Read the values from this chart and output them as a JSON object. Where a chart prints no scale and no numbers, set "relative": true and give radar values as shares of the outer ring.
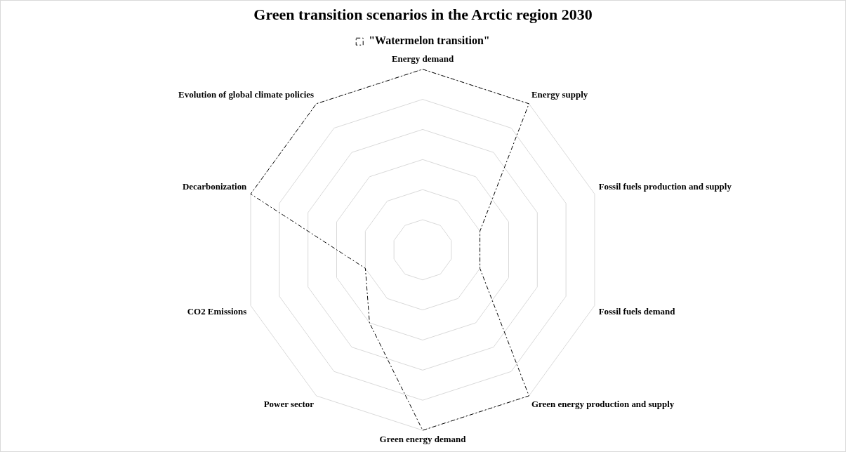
{
  "chart_data": {
    "type": "radar",
    "title": "Green transition scenarios in the Arctic region 2030",
    "categories": [
      "Energy demand",
      "Energy supply",
      "Fossil fuels production and supply",
      "Fossil fuels demand",
      "Green energy production and supply",
      "Green energy demand",
      "Power sector",
      "CO2 Emissions",
      "Decarbonization",
      "Evolution of global climate policies"
    ],
    "series": [
      {
        "name": "\"Watermelon transition\"",
        "color": "#000000",
        "values": [
          1,
          1,
          0.333,
          0.333,
          1,
          1,
          0.5,
          0.333,
          1,
          1
        ]
      }
    ],
    "relative": true,
    "legend": "top",
    "marker": "none",
    "line_style": "dashed",
    "grid": true
  }
}
